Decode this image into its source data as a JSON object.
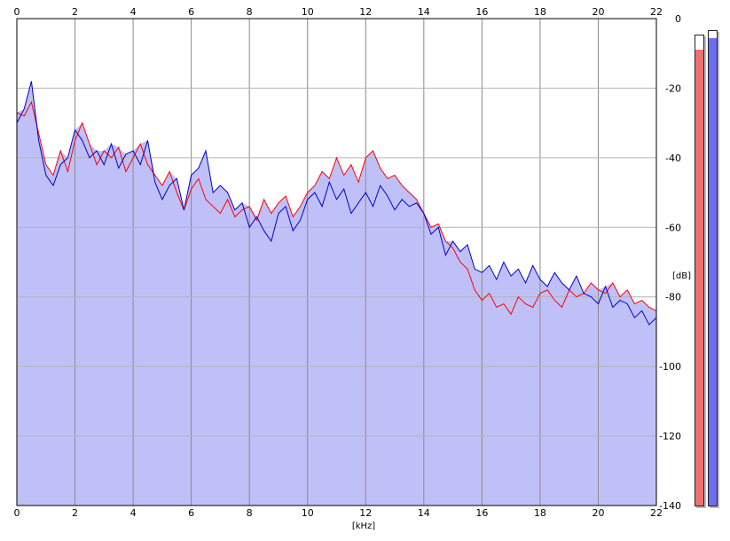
{
  "chart_data": {
    "type": "area",
    "title": "",
    "xlabel": "[kHz]",
    "ylabel": "[dB]",
    "xlim": [
      0,
      22
    ],
    "ylim": [
      -140,
      0
    ],
    "x_ticks": [
      "0",
      "2",
      "4",
      "6",
      "8",
      "10",
      "12",
      "14",
      "16",
      "18",
      "20",
      "22"
    ],
    "y_ticks": [
      "0",
      "-20",
      "-40",
      "-60",
      "-80",
      "-100",
      "-120",
      "-140"
    ],
    "grid": true,
    "background_fill_color": "#c0c0f8",
    "series": [
      {
        "color": "#ff0000",
        "x": [
          0,
          0.25,
          0.5,
          0.75,
          1,
          1.25,
          1.5,
          1.75,
          2,
          2.25,
          2.5,
          2.75,
          3,
          3.25,
          3.5,
          3.75,
          4,
          4.25,
          4.5,
          4.75,
          5,
          5.25,
          5.5,
          5.75,
          6,
          6.25,
          6.5,
          6.75,
          7,
          7.25,
          7.5,
          7.75,
          8,
          8.25,
          8.5,
          8.75,
          9,
          9.25,
          9.5,
          9.75,
          10,
          10.25,
          10.5,
          10.75,
          11,
          11.25,
          11.5,
          11.75,
          12,
          12.25,
          12.5,
          12.75,
          13,
          13.25,
          13.5,
          13.75,
          14,
          14.25,
          14.5,
          14.75,
          15,
          15.25,
          15.5,
          15.75,
          16,
          16.25,
          16.5,
          16.75,
          17,
          17.25,
          17.5,
          17.75,
          18,
          18.25,
          18.5,
          18.75,
          19,
          19.25,
          19.5,
          19.75,
          20,
          20.25,
          20.5,
          20.75,
          21,
          21.25,
          21.5,
          21.75,
          22
        ],
        "values": [
          -27,
          -28,
          -24,
          -33,
          -42,
          -45,
          -38,
          -44,
          -35,
          -30,
          -36,
          -42,
          -38,
          -40,
          -37,
          -44,
          -40,
          -36,
          -42,
          -45,
          -48,
          -44,
          -50,
          -55,
          -49,
          -46,
          -52,
          -54,
          -56,
          -52,
          -57,
          -55,
          -54,
          -58,
          -52,
          -56,
          -53,
          -51,
          -57,
          -54,
          -50,
          -48,
          -44,
          -46,
          -40,
          -45,
          -42,
          -47,
          -40,
          -38,
          -43,
          -46,
          -45,
          -48,
          -50,
          -52,
          -56,
          -60,
          -59,
          -64,
          -66,
          -70,
          -72,
          -78,
          -81,
          -79,
          -83,
          -82,
          -85,
          -80,
          -82,
          -83,
          -79,
          -78,
          -81,
          -83,
          -78,
          -80,
          -79,
          -76,
          -78,
          -79,
          -76,
          -80,
          -78,
          -82,
          -81,
          -83,
          -84
        ]
      },
      {
        "color": "#0000c8",
        "x": [
          0,
          0.25,
          0.5,
          0.75,
          1,
          1.25,
          1.5,
          1.75,
          2,
          2.25,
          2.5,
          2.75,
          3,
          3.25,
          3.5,
          3.75,
          4,
          4.25,
          4.5,
          4.75,
          5,
          5.25,
          5.5,
          5.75,
          6,
          6.25,
          6.5,
          6.75,
          7,
          7.25,
          7.5,
          7.75,
          8,
          8.25,
          8.5,
          8.75,
          9,
          9.25,
          9.5,
          9.75,
          10,
          10.25,
          10.5,
          10.75,
          11,
          11.25,
          11.5,
          11.75,
          12,
          12.25,
          12.5,
          12.75,
          13,
          13.25,
          13.5,
          13.75,
          14,
          14.25,
          14.5,
          14.75,
          15,
          15.25,
          15.5,
          15.75,
          16,
          16.25,
          16.5,
          16.75,
          17,
          17.25,
          17.5,
          17.75,
          18,
          18.25,
          18.5,
          18.75,
          19,
          19.25,
          19.5,
          19.75,
          20,
          20.25,
          20.5,
          20.75,
          21,
          21.25,
          21.5,
          21.75,
          22
        ],
        "values": [
          -30,
          -26,
          -18,
          -35,
          -45,
          -48,
          -42,
          -40,
          -32,
          -35,
          -40,
          -38,
          -42,
          -36,
          -43,
          -39,
          -38,
          -42,
          -35,
          -47,
          -52,
          -48,
          -46,
          -55,
          -45,
          -43,
          -38,
          -50,
          -48,
          -50,
          -55,
          -53,
          -60,
          -57,
          -61,
          -64,
          -56,
          -54,
          -61,
          -58,
          -52,
          -50,
          -54,
          -47,
          -52,
          -49,
          -56,
          -53,
          -50,
          -54,
          -48,
          -51,
          -55,
          -52,
          -54,
          -53,
          -56,
          -62,
          -60,
          -68,
          -64,
          -67,
          -65,
          -72,
          -73,
          -71,
          -75,
          -70,
          -74,
          -72,
          -76,
          -71,
          -75,
          -77,
          -73,
          -76,
          -78,
          -74,
          -79,
          -80,
          -82,
          -77,
          -83,
          -81,
          -82,
          -86,
          -84,
          -88,
          -86
        ]
      }
    ],
    "meters": [
      {
        "color": "#f07070",
        "level": 0.97
      },
      {
        "color": "#6e6ef0",
        "level": 0.985
      }
    ]
  }
}
